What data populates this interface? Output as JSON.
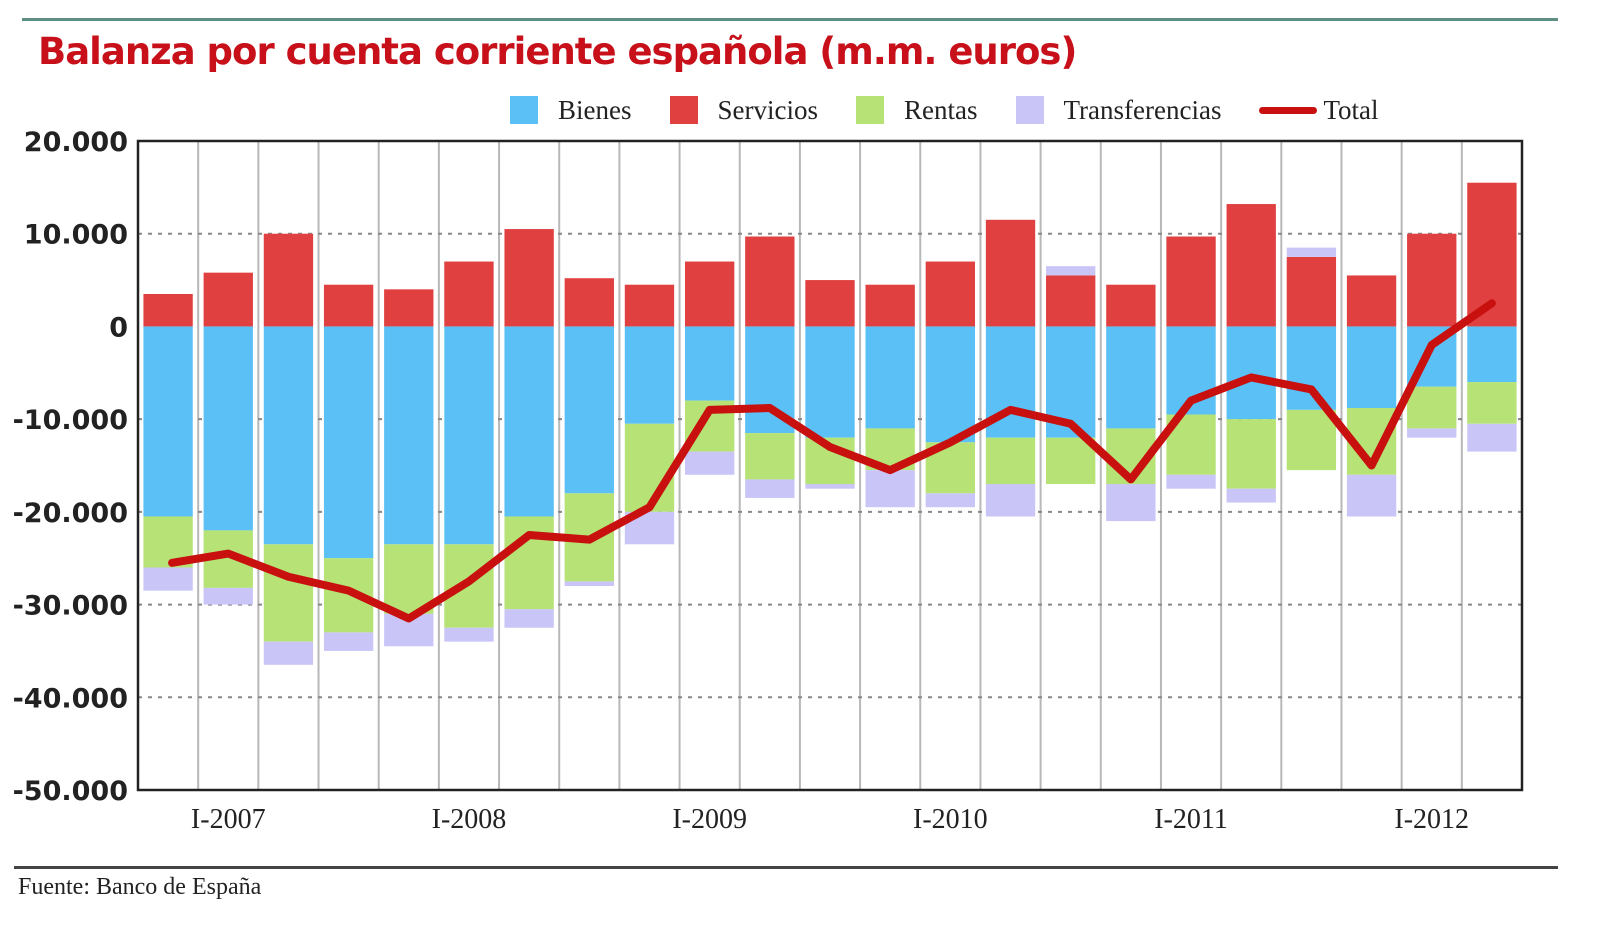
{
  "chart_data": {
    "type": "bar",
    "subtype": "stacked-bar-with-line",
    "title": "Balanza por cuenta corriente española (m.m. euros)",
    "xlabel": "",
    "ylabel": "",
    "ylim": [
      -50000,
      20000
    ],
    "yticks": [
      20000,
      10000,
      0,
      -10000,
      -20000,
      -30000,
      -40000,
      -50000
    ],
    "ytick_labels": [
      "20.000",
      "10.000",
      "0",
      "-10.000",
      "-20.000",
      "-30.000",
      "-40.000",
      "-50.000"
    ],
    "grid": "horizontal dotted at 10.000 steps",
    "legend_position": "top",
    "categories": [
      "IV-2006",
      "I-2007",
      "II-2007",
      "III-2007",
      "IV-2007",
      "I-2008",
      "II-2008",
      "III-2008",
      "IV-2008",
      "I-2009",
      "II-2009",
      "III-2009",
      "IV-2009",
      "I-2010",
      "II-2010",
      "III-2010",
      "IV-2010",
      "I-2011",
      "II-2011",
      "III-2011",
      "IV-2011",
      "I-2012",
      "II-2012"
    ],
    "xtick_labels": [
      {
        "index": 1,
        "label": "I-2007"
      },
      {
        "index": 5,
        "label": "I-2008"
      },
      {
        "index": 9,
        "label": "I-2009"
      },
      {
        "index": 13,
        "label": "I-2010"
      },
      {
        "index": 17,
        "label": "I-2011"
      },
      {
        "index": 21,
        "label": "I-2012"
      }
    ],
    "series": [
      {
        "name": "Bienes",
        "color": "#5bc0f5",
        "values": [
          -20500,
          -22000,
          -23500,
          -25000,
          -23500,
          -23500,
          -20500,
          -18000,
          -10500,
          -8000,
          -11500,
          -12000,
          -11000,
          -12500,
          -12000,
          -12000,
          -11000,
          -9500,
          -10000,
          -9000,
          -8800,
          -6500,
          -6000
        ]
      },
      {
        "name": "Servicios",
        "color": "#e04040",
        "values": [
          3500,
          5800,
          10000,
          4500,
          4000,
          7000,
          10500,
          5200,
          4500,
          7000,
          9700,
          5000,
          4500,
          7000,
          11500,
          5500,
          4500,
          9700,
          13200,
          7500,
          5500,
          10000,
          15500
        ]
      },
      {
        "name": "Rentas",
        "color": "#b6e276",
        "values": [
          -5500,
          -6200,
          -10500,
          -8000,
          -7500,
          -9000,
          -10000,
          -9500,
          -9500,
          -5500,
          -5000,
          -5000,
          -4500,
          -5500,
          -5000,
          -5000,
          -6000,
          -6500,
          -7500,
          -6500,
          -7200,
          -4500,
          -4500
        ]
      },
      {
        "name": "Transferencias",
        "color": "#c9c6f7",
        "values": [
          -2500,
          -1800,
          -2500,
          -2000,
          -3500,
          -1500,
          -2000,
          -500,
          -3500,
          -2500,
          -2000,
          -500,
          -4000,
          -1500,
          -3500,
          1000,
          -4000,
          -1500,
          -1500,
          1000,
          -4500,
          -1000,
          -3000
        ]
      },
      {
        "name": "Total",
        "color": "#c8100f",
        "type": "line",
        "values": [
          -25500,
          -24500,
          -27000,
          -28500,
          -31500,
          -27500,
          -22500,
          -23000,
          -19500,
          -9000,
          -8800,
          -13000,
          -15500,
          -12500,
          -9000,
          -10500,
          -16500,
          -8000,
          -5500,
          -6800,
          -15000,
          -2000,
          2500
        ]
      }
    ],
    "source": "Fuente: Banco de España"
  },
  "legend": [
    {
      "label": "Bienes",
      "color": "#5bc0f5",
      "kind": "box"
    },
    {
      "label": "Servicios",
      "color": "#e04040",
      "kind": "box"
    },
    {
      "label": "Rentas",
      "color": "#b6e276",
      "kind": "box"
    },
    {
      "label": "Transferencias",
      "color": "#c9c6f7",
      "kind": "box"
    },
    {
      "label": "Total",
      "color": "#c8100f",
      "kind": "line"
    }
  ]
}
